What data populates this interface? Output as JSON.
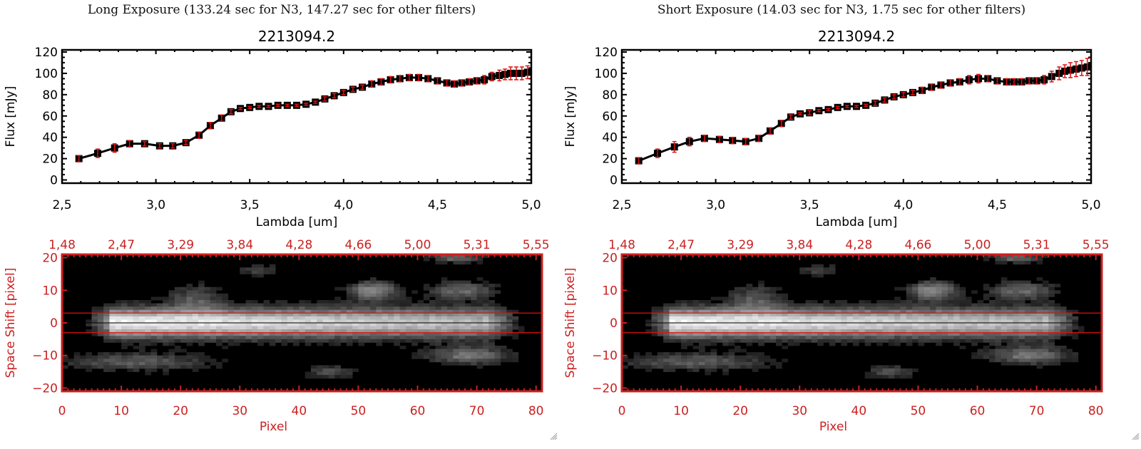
{
  "colors": {
    "axis": "#000000",
    "errorbar": "#e01010",
    "image_axis": "#cc2020",
    "aperture": "#e01010"
  },
  "chart_data": [
    {
      "type": "line",
      "panel": "left",
      "exposure_title": "Long Exposure (133.24 sec for N3, 147.27 sec for other filters)",
      "title": "2213094.2",
      "xlabel": "Lambda [um]",
      "ylabel": "Flux [mJy]",
      "xlim": [
        2.5,
        5.0
      ],
      "ylim": [
        -3,
        122
      ],
      "xticks": [
        "2.5",
        "3.0",
        "3.5",
        "4.0",
        "4.5",
        "5.0"
      ],
      "yticks": [
        "0",
        "20",
        "40",
        "60",
        "80",
        "100",
        "120"
      ],
      "grid": false,
      "series": [
        {
          "name": "flux",
          "x": [
            2.59,
            2.69,
            2.78,
            2.86,
            2.94,
            3.02,
            3.09,
            3.16,
            3.23,
            3.29,
            3.35,
            3.4,
            3.45,
            3.5,
            3.55,
            3.6,
            3.65,
            3.7,
            3.75,
            3.8,
            3.85,
            3.9,
            3.95,
            4.0,
            4.05,
            4.1,
            4.15,
            4.2,
            4.25,
            4.3,
            4.35,
            4.4,
            4.45,
            4.5,
            4.55,
            4.59,
            4.63,
            4.67,
            4.71,
            4.75,
            4.79,
            4.83,
            4.86,
            4.89,
            4.92,
            4.95,
            4.98
          ],
          "y": [
            20,
            25,
            30,
            34,
            34,
            32,
            32,
            35,
            42,
            51,
            58,
            64,
            67,
            68,
            69,
            69,
            70,
            70,
            70,
            71,
            73,
            76,
            79,
            82,
            85,
            87,
            90,
            92,
            94,
            95,
            96,
            96,
            95,
            93,
            91,
            90,
            91,
            92,
            93,
            94,
            97,
            98,
            99,
            100,
            100,
            100,
            101
          ],
          "yerr": [
            3,
            4,
            4,
            3,
            2,
            2,
            2,
            2,
            3,
            3,
            3,
            2,
            1,
            1,
            1,
            1,
            1,
            1,
            1,
            1,
            1,
            2,
            2,
            2,
            2,
            2,
            3,
            3,
            3,
            3,
            3,
            3,
            3,
            3,
            3,
            3,
            3,
            3,
            3,
            4,
            4,
            5,
            5,
            6,
            6,
            6,
            6
          ]
        }
      ]
    },
    {
      "type": "line",
      "panel": "right",
      "exposure_title": "Short Exposure (14.03 sec for N3, 1.75 sec for other filters)",
      "title": "2213094.2",
      "xlabel": "Lambda [um]",
      "ylabel": "Flux [mJy]",
      "xlim": [
        2.5,
        5.0
      ],
      "ylim": [
        -3,
        122
      ],
      "xticks": [
        "2.5",
        "3.0",
        "3.5",
        "4.0",
        "4.5",
        "5.0"
      ],
      "yticks": [
        "0",
        "20",
        "40",
        "60",
        "80",
        "100",
        "120"
      ],
      "grid": false,
      "series": [
        {
          "name": "flux",
          "x": [
            2.59,
            2.69,
            2.78,
            2.86,
            2.94,
            3.02,
            3.09,
            3.16,
            3.23,
            3.29,
            3.35,
            3.4,
            3.45,
            3.5,
            3.55,
            3.6,
            3.65,
            3.7,
            3.75,
            3.8,
            3.85,
            3.9,
            3.95,
            4.0,
            4.05,
            4.1,
            4.15,
            4.2,
            4.25,
            4.3,
            4.35,
            4.4,
            4.45,
            4.5,
            4.55,
            4.59,
            4.63,
            4.67,
            4.71,
            4.75,
            4.79,
            4.83,
            4.86,
            4.89,
            4.92,
            4.95,
            4.98
          ],
          "y": [
            18,
            25,
            31,
            36,
            39,
            38,
            37,
            36,
            39,
            46,
            53,
            59,
            62,
            63,
            65,
            66,
            68,
            69,
            69,
            70,
            72,
            75,
            78,
            80,
            82,
            84,
            87,
            89,
            91,
            92,
            94,
            95,
            95,
            93,
            92,
            92,
            92,
            93,
            93,
            94,
            97,
            100,
            102,
            103,
            104,
            105,
            106
          ],
          "yerr": [
            3,
            4,
            5,
            4,
            3,
            3,
            3,
            3,
            3,
            3,
            3,
            2,
            1,
            2,
            1,
            1,
            1,
            1,
            1,
            1,
            2,
            2,
            2,
            2,
            2,
            3,
            3,
            3,
            3,
            3,
            4,
            4,
            3,
            3,
            3,
            3,
            3,
            3,
            3,
            4,
            5,
            6,
            6,
            7,
            7,
            7,
            8
          ]
        }
      ]
    },
    {
      "type": "heatmap",
      "panel": "left",
      "xlabel": "Pixel",
      "ylabel": "Space Shift [pixel]",
      "xlim": [
        0,
        81
      ],
      "ylim": [
        -21,
        21
      ],
      "xticks": [
        "0",
        "10",
        "20",
        "30",
        "40",
        "50",
        "60",
        "70",
        "80"
      ],
      "yticks": [
        "-20",
        "-10",
        "0",
        "10",
        "20"
      ],
      "top_xticks": [
        "1.48",
        "2.47",
        "3.29",
        "3.84",
        "4.28",
        "4.66",
        "5.00",
        "5.31",
        "5.55"
      ],
      "aperture_lines": [
        3,
        -3
      ],
      "center_line": 0
    },
    {
      "type": "heatmap",
      "panel": "right",
      "xlabel": "Pixel",
      "ylabel": "Space Shift [pixel]",
      "xlim": [
        0,
        81
      ],
      "ylim": [
        -21,
        21
      ],
      "xticks": [
        "0",
        "10",
        "20",
        "30",
        "40",
        "50",
        "60",
        "70",
        "80"
      ],
      "yticks": [
        "-20",
        "-10",
        "0",
        "10",
        "20"
      ],
      "top_xticks": [
        "1.48",
        "2.47",
        "3.29",
        "3.84",
        "4.28",
        "4.66",
        "5.00",
        "5.31",
        "5.55"
      ],
      "aperture_lines": [
        3,
        -3
      ],
      "center_line": 0
    }
  ]
}
